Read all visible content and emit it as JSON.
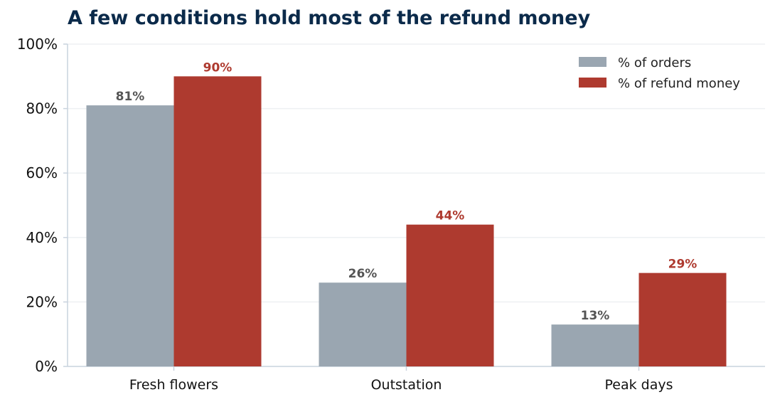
{
  "chart_data": {
    "type": "bar",
    "title": "A few conditions hold most of the refund money",
    "categories": [
      "Fresh flowers",
      "Outstation",
      "Peak days"
    ],
    "series": [
      {
        "name": "% of orders",
        "values": [
          81,
          26,
          13
        ],
        "color": "#9aa6b1",
        "label_color": "#555555"
      },
      {
        "name": "% of refund money",
        "values": [
          90,
          44,
          29
        ],
        "color": "#ae3a2f",
        "label_color": "#ae3a2f"
      }
    ],
    "ylim": [
      0,
      100
    ],
    "yticks": [
      0,
      20,
      40,
      60,
      80,
      100
    ],
    "y_tick_suffix": "%",
    "data_label_suffix": "%",
    "xlabel": "",
    "ylabel": "",
    "grid": "horizontal",
    "legend_position": "top-right",
    "title_color": "#0b2a4a",
    "grid_color": "#eef0f3",
    "axis_color": "#c9d3de"
  }
}
